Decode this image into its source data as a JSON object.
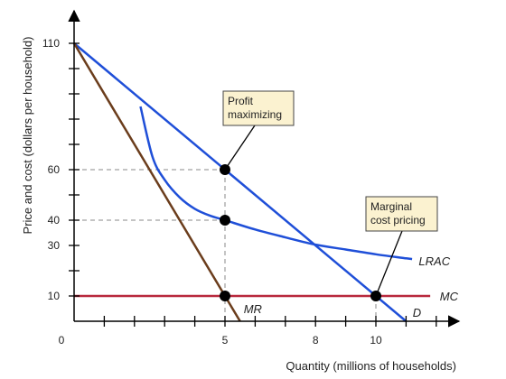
{
  "chart_data": {
    "type": "line",
    "xlabel": "Quantity (millions of households)",
    "ylabel": "Price and cost (dollars per household)",
    "xlim": [
      0,
      13
    ],
    "ylim": [
      0,
      120
    ],
    "x_ticks_labeled": [
      {
        "value": 0,
        "label": "0"
      },
      {
        "value": 5,
        "label": "5"
      },
      {
        "value": 8,
        "label": "8"
      },
      {
        "value": 10,
        "label": "10"
      }
    ],
    "x_minor_ticks": [
      1,
      2,
      3,
      4,
      5,
      6,
      7,
      8,
      9,
      10,
      11,
      12
    ],
    "y_ticks_labeled": [
      {
        "value": 10,
        "label": "10"
      },
      {
        "value": 30,
        "label": "30"
      },
      {
        "value": 40,
        "label": "40"
      },
      {
        "value": 60,
        "label": "60"
      },
      {
        "value": 110,
        "label": "110"
      }
    ],
    "y_minor_ticks": [
      10,
      20,
      30,
      40,
      50,
      60,
      70,
      80,
      90,
      100,
      110
    ],
    "grid": false,
    "series": [
      {
        "key": "demand",
        "name": "D",
        "color": "#1f4fd8",
        "points": [
          [
            0,
            110
          ],
          [
            11,
            0
          ]
        ]
      },
      {
        "key": "mr",
        "name": "MR",
        "color": "#6b3d1c",
        "points": [
          [
            0,
            110
          ],
          [
            5.5,
            0
          ]
        ]
      },
      {
        "key": "mc",
        "name": "MC",
        "color": "#b8283c",
        "points": [
          [
            0,
            10
          ],
          [
            11.8,
            10
          ]
        ]
      },
      {
        "key": "lrac",
        "name": "LRAC",
        "color": "#1f4fd8",
        "points": [
          [
            2.2,
            85
          ],
          [
            2.6,
            65
          ],
          [
            3.0,
            56
          ],
          [
            3.5,
            49
          ],
          [
            4.0,
            44.5
          ],
          [
            4.5,
            41.8
          ],
          [
            5.0,
            40
          ],
          [
            6.0,
            36.3
          ],
          [
            7.0,
            33.2
          ],
          [
            8.0,
            30.3
          ],
          [
            9.0,
            28.4
          ],
          [
            10.0,
            26.5
          ],
          [
            11.0,
            24.9
          ],
          [
            11.2,
            24.6
          ]
        ]
      }
    ],
    "label_positions": {
      "demand": [
        11.1,
        3.5
      ],
      "mr": [
        5.5,
        5
      ],
      "mc": [
        12.0,
        10
      ],
      "lrac": [
        11.3,
        24
      ]
    },
    "dashed_lines": [
      {
        "from": [
          0,
          60
        ],
        "to": [
          5,
          60
        ]
      },
      {
        "from": [
          0,
          40
        ],
        "to": [
          5,
          40
        ]
      },
      {
        "from": [
          5,
          60
        ],
        "to": [
          5,
          0
        ]
      },
      {
        "from": [
          10,
          10
        ],
        "to": [
          10,
          0
        ]
      }
    ],
    "points": [
      {
        "x": 5,
        "y": 60
      },
      {
        "x": 5,
        "y": 40
      },
      {
        "x": 5,
        "y": 10
      },
      {
        "x": 10,
        "y": 10
      }
    ],
    "annotations": [
      {
        "lines": [
          "Profit",
          "maximizing"
        ],
        "target": [
          5,
          60
        ]
      },
      {
        "lines": [
          "Marginal",
          "cost pricing"
        ],
        "target": [
          10,
          10
        ]
      }
    ]
  }
}
